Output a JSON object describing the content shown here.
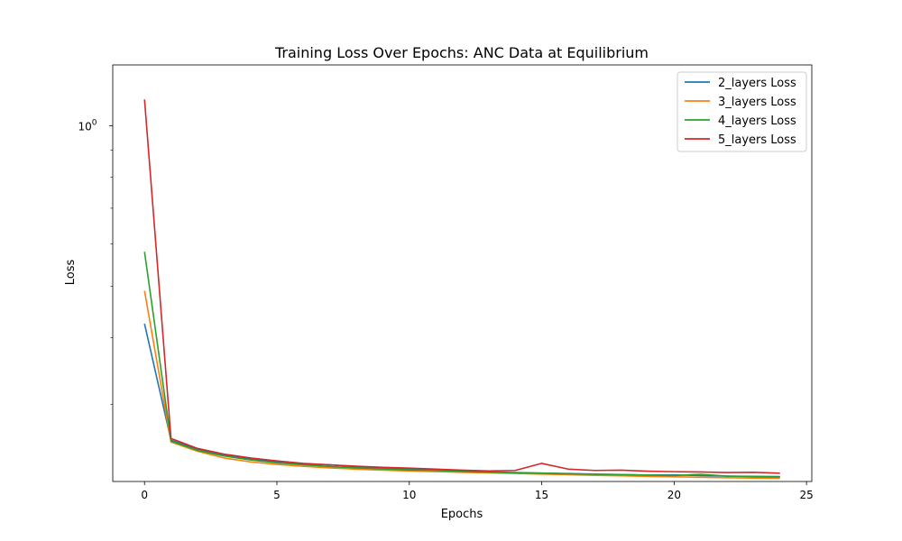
{
  "chart_data": {
    "type": "line",
    "title": "Training Loss Over Epochs: ANC Data at Equilibrium",
    "xlabel": "Epochs",
    "ylabel": "Loss",
    "xlim": [
      -1.2,
      25.2
    ],
    "xticks": [
      0,
      5,
      10,
      15,
      20,
      25
    ],
    "yscale": "log",
    "ylim": [
      0.215,
      1.3
    ],
    "yticks_major": [
      {
        "value": 1.0,
        "label_base": "10",
        "label_exp": "0"
      }
    ],
    "yticks_minor": [
      0.3,
      0.4,
      0.5,
      0.6,
      0.7,
      0.8,
      0.9
    ],
    "grid": false,
    "legend_position": "top-right",
    "x": [
      0,
      1,
      2,
      3,
      4,
      5,
      6,
      7,
      8,
      9,
      10,
      11,
      12,
      13,
      14,
      15,
      16,
      17,
      18,
      19,
      20,
      21,
      22,
      23,
      24
    ],
    "series": [
      {
        "name": "2_layers Loss",
        "color": "#1f77b4",
        "values": [
          0.425,
          0.257,
          0.247,
          0.241,
          0.237,
          0.234,
          0.232,
          0.231,
          0.229,
          0.228,
          0.227,
          0.226,
          0.225,
          0.224,
          0.2235,
          0.223,
          0.2225,
          0.222,
          0.2215,
          0.221,
          0.2212,
          0.2205,
          0.22,
          0.2198,
          0.2196
        ]
      },
      {
        "name": "3_layers Loss",
        "color": "#ff7f0e",
        "values": [
          0.49,
          0.255,
          0.245,
          0.238,
          0.234,
          0.2315,
          0.2295,
          0.228,
          0.2268,
          0.2258,
          0.225,
          0.2243,
          0.2237,
          0.2232,
          0.2226,
          0.222,
          0.2214,
          0.2208,
          0.2203,
          0.2198,
          0.2194,
          0.219,
          0.2185,
          0.2182,
          0.218
        ]
      },
      {
        "name": "4_layers Loss",
        "color": "#2ca02c",
        "values": [
          0.58,
          0.256,
          0.246,
          0.24,
          0.236,
          0.233,
          0.231,
          0.2293,
          0.228,
          0.227,
          0.226,
          0.2255,
          0.2245,
          0.2238,
          0.2232,
          0.2228,
          0.2223,
          0.2218,
          0.2214,
          0.221,
          0.2206,
          0.2218,
          0.22,
          0.2195,
          0.2192
        ]
      },
      {
        "name": "5_layers Loss",
        "color": "#d62728",
        "values": [
          1.12,
          0.259,
          0.248,
          0.242,
          0.238,
          0.235,
          0.2325,
          0.231,
          0.2297,
          0.2285,
          0.2278,
          0.2268,
          0.2258,
          0.225,
          0.2255,
          0.2325,
          0.2268,
          0.2255,
          0.2258,
          0.2248,
          0.2243,
          0.224,
          0.2235,
          0.2237,
          0.2228
        ]
      }
    ]
  }
}
